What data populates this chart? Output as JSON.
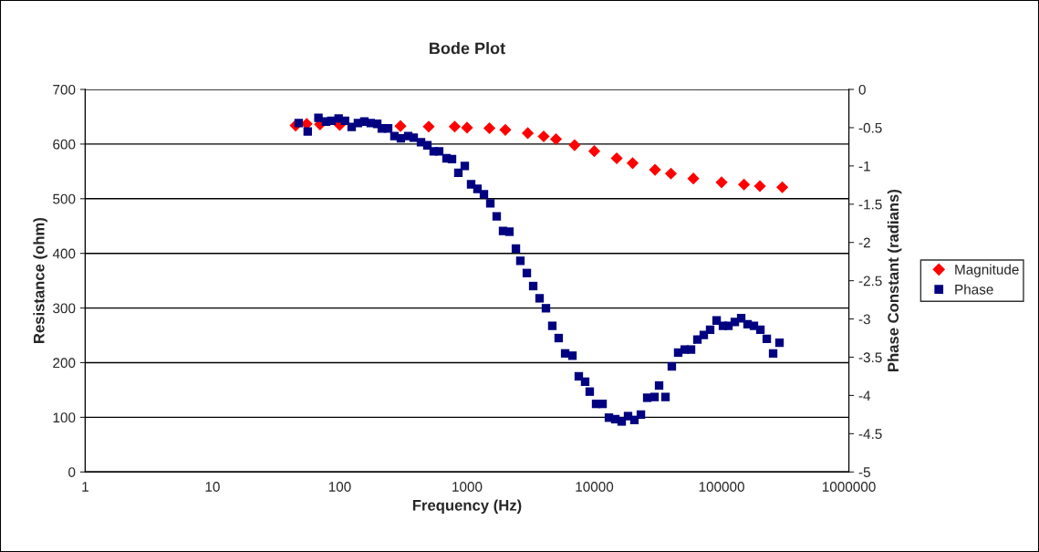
{
  "chart_data": {
    "type": "scatter",
    "title": "Bode Plot",
    "xlabel": "Frequency (Hz)",
    "ylabel": "Resistance (ohm)",
    "y2label": "Phase Constant (radians)",
    "log": "x",
    "xlim": [
      1,
      1000000
    ],
    "xticks": [
      1,
      10,
      100,
      1000,
      10000,
      100000,
      1000000
    ],
    "ylim": [
      0,
      700
    ],
    "yticks": [
      0,
      100,
      200,
      300,
      400,
      500,
      600,
      700
    ],
    "y2lim": [
      -5,
      0
    ],
    "y2ticks": [
      -5,
      -4.5,
      -4,
      -3.5,
      -3,
      -2.5,
      -2,
      -1.5,
      -1,
      -0.5,
      0
    ],
    "grid": "y",
    "legend": "right",
    "series": [
      {
        "name": "Magnitude",
        "color": "#ff0000",
        "marker": "diamond",
        "x": [
          45,
          55,
          70,
          100,
          150,
          200,
          300,
          500,
          800,
          1000,
          1500,
          2000,
          3000,
          4000,
          5000,
          7000,
          10000,
          15000,
          20000,
          30000,
          40000,
          60000,
          100000,
          150000,
          200000,
          300000
        ],
        "values": [
          634,
          637,
          636,
          635,
          null,
          null,
          633,
          632,
          632,
          630,
          629,
          626,
          620,
          614,
          609,
          598,
          587,
          574,
          565,
          553,
          546,
          537,
          530,
          526,
          523,
          521
        ]
      },
      {
        "name": "Phase",
        "color": "#000080",
        "marker": "square",
        "axis": "y2",
        "x": [
          47.6,
          56,
          68,
          78,
          86,
          98,
          110,
          124,
          139,
          156,
          175,
          197,
          214,
          240,
          269,
          302,
          345,
          381,
          435,
          488,
          547,
          604,
          690,
          762,
          855,
          960,
          1077,
          1208,
          1358,
          1524,
          1710,
          1919,
          2153,
          2421,
          2624,
          2951,
          3311,
          3715,
          4169,
          4677,
          5248,
          5902,
          6730,
          7551,
          8472,
          9204,
          10330,
          11610,
          13030,
          14620,
          16410,
          18410,
          20650,
          23230,
          26060,
          29720,
          32280,
          36220,
          40640,
          45600,
          51290,
          57540,
          64570,
          72440,
          81280,
          91410,
          102500,
          113200,
          127100,
          142600,
          160000,
          179500,
          201800,
          226500,
          254100,
          285100
        ],
        "values": [
          -0.44,
          -0.55,
          -0.37,
          -0.42,
          -0.41,
          -0.38,
          -0.41,
          -0.49,
          -0.44,
          -0.42,
          -0.44,
          -0.45,
          -0.51,
          -0.51,
          -0.61,
          -0.64,
          -0.61,
          -0.63,
          -0.69,
          -0.73,
          -0.81,
          -0.81,
          -0.9,
          -0.91,
          -1.09,
          -1.0,
          -1.24,
          -1.3,
          -1.37,
          -1.49,
          -1.66,
          -1.85,
          -1.86,
          -2.08,
          -2.24,
          -2.4,
          -2.57,
          -2.73,
          -2.86,
          -3.09,
          -3.25,
          -3.45,
          -3.48,
          -3.75,
          -3.82,
          -3.95,
          -4.11,
          -4.11,
          -4.29,
          -4.31,
          -4.34,
          -4.27,
          -4.32,
          -4.25,
          -4.03,
          -4.02,
          -3.87,
          -4.02,
          -3.62,
          -3.44,
          -3.4,
          -3.4,
          -3.27,
          -3.21,
          -3.14,
          -3.02,
          -3.09,
          -3.09,
          -3.04,
          -2.99,
          -3.07,
          -3.09,
          -3.14,
          -3.26,
          -3.45,
          -3.31
        ]
      }
    ]
  }
}
